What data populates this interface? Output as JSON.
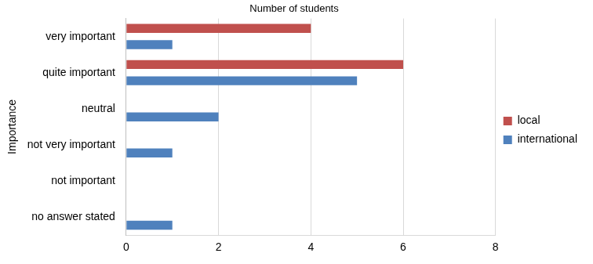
{
  "chart_data": {
    "type": "bar",
    "orientation": "horizontal",
    "x_label": "Number of students",
    "y_label": "Importance",
    "categories": [
      "very important",
      "quite important",
      "neutral",
      "not very important",
      "not important",
      "no answer stated"
    ],
    "series": [
      {
        "name": "local",
        "color": "#c0504d",
        "values": [
          4,
          6,
          0,
          0,
          0,
          0
        ]
      },
      {
        "name": "international",
        "color": "#4f81bd",
        "values": [
          1,
          5,
          2,
          1,
          0,
          1
        ]
      }
    ],
    "xlim": [
      0,
      8
    ],
    "xticks": [
      0,
      2,
      4,
      6,
      8
    ],
    "grid": true,
    "legend": "right"
  }
}
